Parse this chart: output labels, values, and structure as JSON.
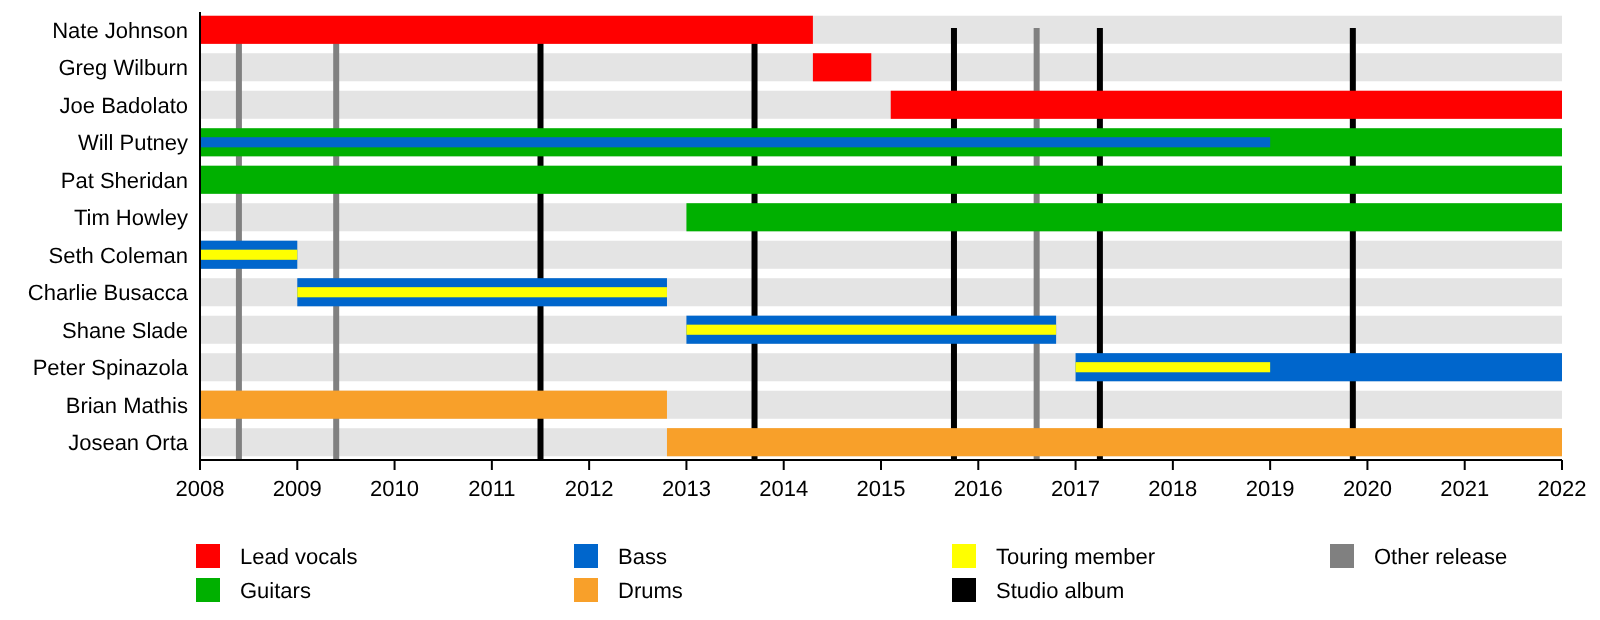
{
  "chart_data": {
    "type": "bar",
    "orientation": "horizontal",
    "categories": [
      "Nate Johnson",
      "Greg Wilburn",
      "Joe Badolato",
      "Will Putney",
      "Pat Sheridan",
      "Tim Howley",
      "Seth Coleman",
      "Charlie Busacca",
      "Shane Slade",
      "Peter Spinazola",
      "Brian Mathis",
      "Josean Orta"
    ],
    "series": [
      {
        "name": "Lead vocals",
        "color": "#ff0000",
        "base": [
          2008,
          2014.3,
          2015.1,
          null,
          null,
          null,
          null,
          null,
          null,
          null,
          null,
          null
        ],
        "values": [
          6.3,
          0.6,
          6.9,
          null,
          null,
          null,
          null,
          null,
          null,
          null,
          null,
          null
        ]
      },
      {
        "name": "Guitars",
        "color": "#00b000",
        "base": [
          null,
          null,
          null,
          2008,
          2008,
          2013,
          null,
          null,
          null,
          null,
          null,
          null
        ],
        "values": [
          null,
          null,
          null,
          14,
          14,
          9,
          null,
          null,
          null,
          null,
          null,
          null
        ]
      },
      {
        "name": "Bass",
        "color": "#0066cc",
        "base": [
          null,
          null,
          null,
          2008,
          null,
          null,
          2008,
          2009,
          2013,
          2017,
          null,
          null
        ],
        "values": [
          null,
          null,
          null,
          11,
          null,
          null,
          1,
          3.8,
          3.8,
          5,
          null,
          null
        ]
      },
      {
        "name": "Drums",
        "color": "#f8a02a",
        "base": [
          null,
          null,
          null,
          null,
          null,
          null,
          null,
          null,
          null,
          null,
          2008,
          2012.8
        ],
        "values": [
          null,
          null,
          null,
          null,
          null,
          null,
          null,
          null,
          null,
          null,
          4.8,
          9.2
        ]
      },
      {
        "name": "Touring member",
        "color": "#ffff00",
        "base": [
          null,
          null,
          null,
          null,
          null,
          null,
          2008,
          2009,
          2013,
          2017,
          null,
          null
        ],
        "values": [
          null,
          null,
          null,
          null,
          null,
          null,
          1,
          3.8,
          3.8,
          2,
          null,
          null
        ]
      }
    ],
    "ref_lines": [
      {
        "axis": "x",
        "value": 2011.5,
        "label": "Studio album",
        "color": "#000000"
      },
      {
        "axis": "x",
        "value": 2013.7,
        "color": "#000000"
      },
      {
        "axis": "x",
        "value": 2015.75,
        "color": "#000000"
      },
      {
        "axis": "x",
        "value": 2017.25,
        "color": "#000000"
      },
      {
        "axis": "x",
        "value": 2019.85,
        "color": "#000000"
      },
      {
        "axis": "x",
        "value": 2008.4,
        "label": "Other release",
        "color": "#808080"
      },
      {
        "axis": "x",
        "value": 2009.4,
        "color": "#808080"
      },
      {
        "axis": "x",
        "value": 2016.6,
        "color": "#808080"
      }
    ],
    "xlim": [
      2008,
      2022
    ],
    "xticks": [
      2008,
      2009,
      2010,
      2011,
      2012,
      2013,
      2014,
      2015,
      2016,
      2017,
      2018,
      2019,
      2020,
      2021,
      2022
    ],
    "legend": "bottom"
  }
}
